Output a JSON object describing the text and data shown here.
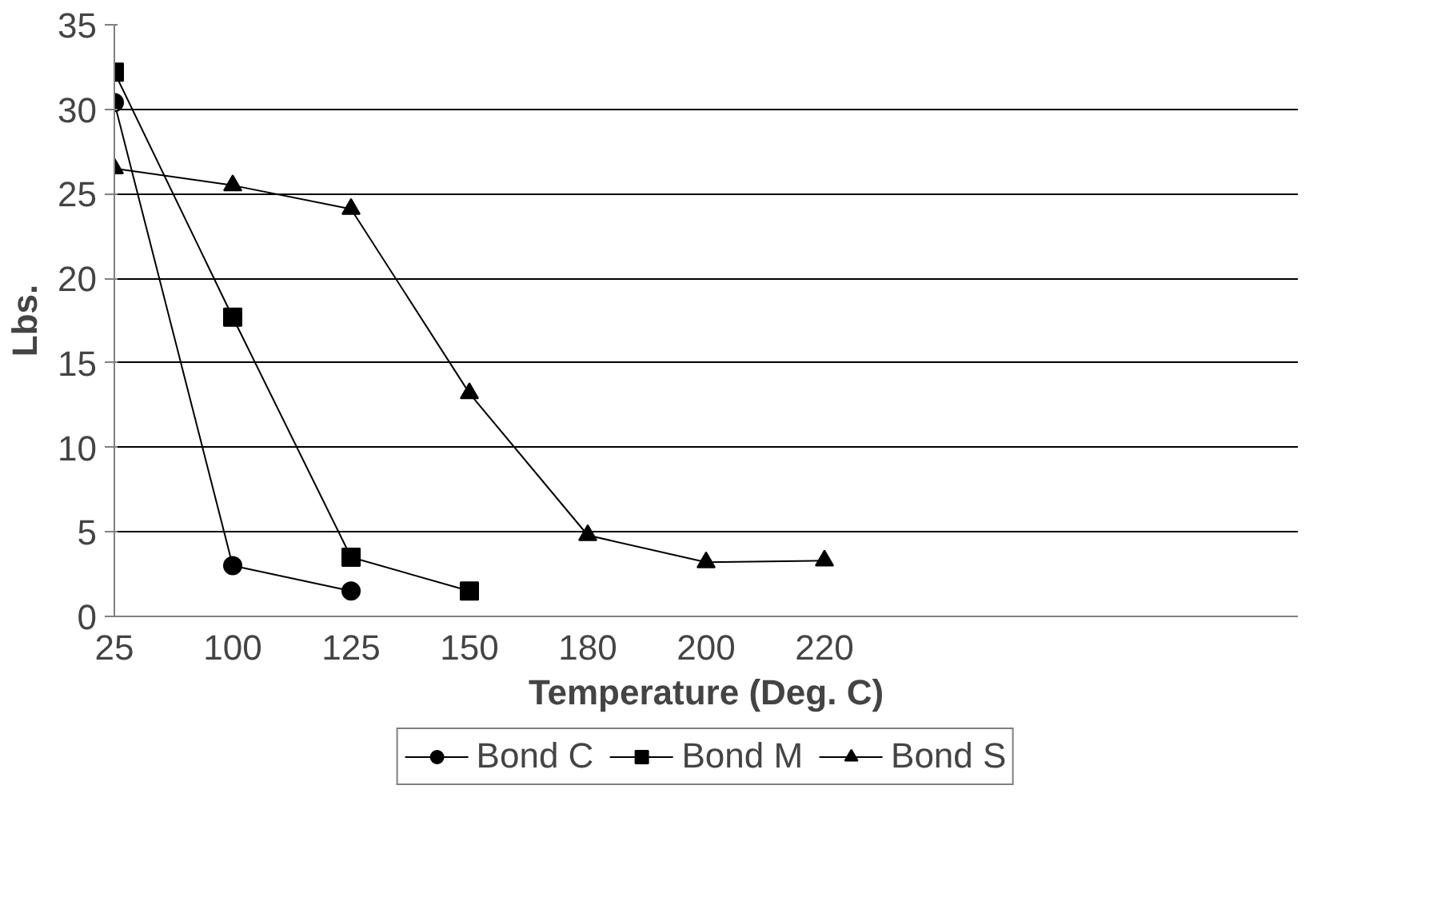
{
  "chart_data": {
    "type": "line",
    "xlabel": "Temperature (Deg. C)",
    "ylabel": "Lbs.",
    "categories": [
      "25",
      "100",
      "125",
      "150",
      "180",
      "200",
      "220",
      null,
      null,
      null,
      null
    ],
    "ylim": [
      0,
      35
    ],
    "yticks": [
      0,
      5,
      10,
      15,
      20,
      25,
      30,
      35
    ],
    "grid": "y",
    "legend": "bottom",
    "series": [
      {
        "name": "Bond C",
        "color": "#000000",
        "marker": "circle",
        "values": [
          30.4,
          3.0,
          1.5,
          null,
          null,
          null,
          null,
          null,
          null,
          null,
          null
        ]
      },
      {
        "name": "Bond M",
        "color": "#000000",
        "marker": "square",
        "values": [
          32.2,
          17.7,
          3.5,
          1.5,
          null,
          null,
          null,
          null,
          null,
          null,
          null
        ]
      },
      {
        "name": "Bond S",
        "color": "#000000",
        "marker": "triangle",
        "values": [
          26.5,
          25.5,
          24.1,
          13.2,
          4.8,
          3.2,
          3.3,
          null,
          null,
          null,
          null
        ]
      }
    ]
  }
}
